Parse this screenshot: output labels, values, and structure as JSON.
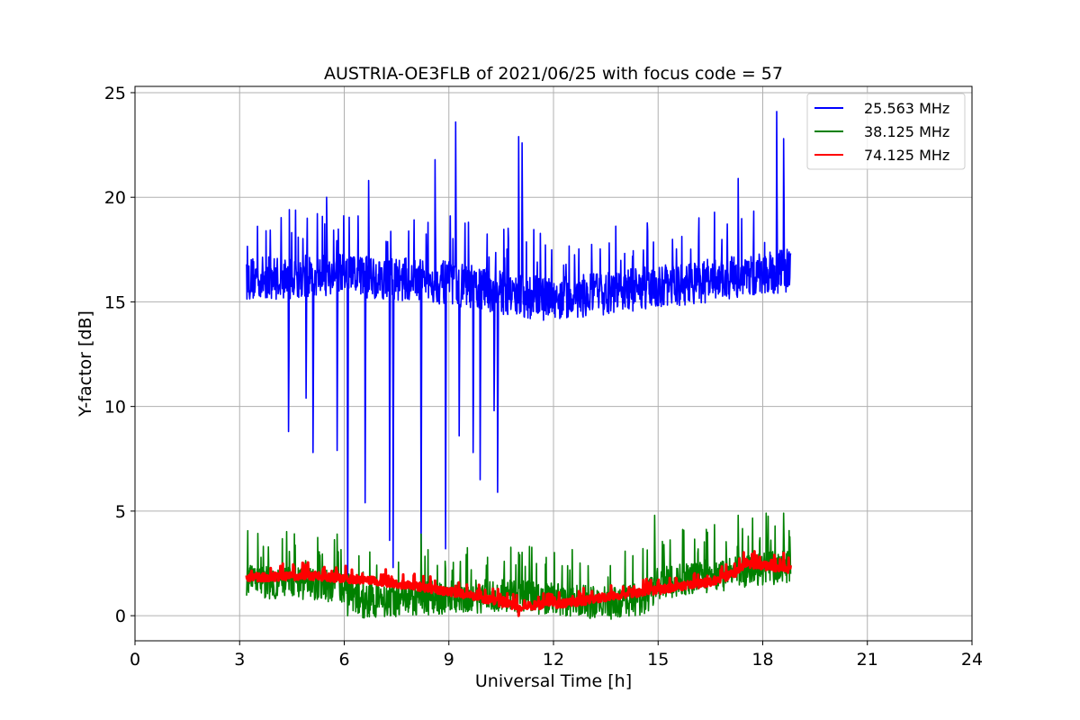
{
  "chart_data": {
    "type": "line",
    "title": "AUSTRIA-OE3FLB of 2021/06/25 with focus code = 57",
    "xlabel": "Universal Time [h]",
    "ylabel": "Y-factor [dB]",
    "xlim": [
      0,
      24
    ],
    "ylim": [
      -1.2,
      25.3
    ],
    "xticks": [
      0,
      3,
      6,
      9,
      12,
      15,
      18,
      21,
      24
    ],
    "xtick_labels": [
      "0",
      "3",
      "6",
      "9",
      "12",
      "15",
      "18",
      "21",
      "24"
    ],
    "yticks": [
      0,
      5,
      10,
      15,
      20,
      25
    ],
    "ytick_labels": [
      "0",
      "5",
      "10",
      "15",
      "20",
      "25"
    ],
    "grid": true,
    "legend_position": "top-right",
    "series": [
      {
        "name": "25.563 MHz",
        "color": "#0000ff",
        "baseline": [
          [
            3.2,
            16.0
          ],
          [
            6.0,
            16.2
          ],
          [
            9.0,
            15.8
          ],
          [
            11.0,
            15.2
          ],
          [
            12.0,
            15.0
          ],
          [
            15.0,
            15.6
          ],
          [
            18.8,
            16.4
          ]
        ],
        "noise_amplitude": 1.3,
        "peaks": [
          [
            4.9,
            19.8
          ],
          [
            5.5,
            20.0
          ],
          [
            6.7,
            20.8
          ],
          [
            8.6,
            21.8
          ],
          [
            9.2,
            23.6
          ],
          [
            11.0,
            22.9
          ],
          [
            11.1,
            22.6
          ],
          [
            17.3,
            20.9
          ],
          [
            18.4,
            24.1
          ],
          [
            18.6,
            22.8
          ]
        ],
        "dips": [
          [
            4.4,
            8.8
          ],
          [
            4.9,
            10.4
          ],
          [
            5.1,
            7.8
          ],
          [
            5.8,
            7.9
          ],
          [
            6.1,
            0.1
          ],
          [
            6.6,
            5.4
          ],
          [
            7.3,
            3.6
          ],
          [
            7.4,
            2.3
          ],
          [
            8.2,
            2.6
          ],
          [
            8.9,
            3.2
          ],
          [
            9.3,
            8.6
          ],
          [
            9.7,
            7.8
          ],
          [
            9.9,
            6.5
          ],
          [
            10.3,
            9.8
          ],
          [
            10.4,
            5.9
          ]
        ]
      },
      {
        "name": "38.125 MHz",
        "color": "#008000",
        "baseline": [
          [
            3.2,
            1.6
          ],
          [
            6.0,
            1.3
          ],
          [
            6.5,
            0.6
          ],
          [
            9.0,
            0.8
          ],
          [
            11.0,
            0.9
          ],
          [
            12.0,
            0.7
          ],
          [
            13.5,
            0.5
          ],
          [
            14.7,
            0.8
          ],
          [
            15.0,
            1.5
          ],
          [
            18.8,
            2.3
          ]
        ],
        "noise_amplitude": 1.0,
        "peaks": [
          [
            5.8,
            3.9
          ],
          [
            8.2,
            3.9
          ],
          [
            14.9,
            4.8
          ],
          [
            17.3,
            4.8
          ],
          [
            18.1,
            4.9
          ],
          [
            18.6,
            4.9
          ]
        ],
        "dips": [
          [
            6.1,
            0.0
          ],
          [
            13.6,
            0.0
          ]
        ]
      },
      {
        "name": "74.125 MHz",
        "color": "#ff0000",
        "baseline": [
          [
            3.2,
            1.8
          ],
          [
            5.0,
            1.9
          ],
          [
            6.5,
            1.7
          ],
          [
            8.0,
            1.4
          ],
          [
            9.5,
            1.0
          ],
          [
            11.0,
            0.4
          ],
          [
            12.5,
            0.6
          ],
          [
            14.0,
            1.0
          ],
          [
            15.0,
            1.2
          ],
          [
            16.5,
            1.6
          ],
          [
            17.2,
            2.0
          ],
          [
            17.5,
            2.5
          ],
          [
            18.8,
            2.2
          ]
        ],
        "noise_amplitude": 0.25,
        "peaks": [
          [
            18.6,
            3.0
          ]
        ],
        "dips": [
          [
            11.0,
            0.0
          ]
        ]
      }
    ]
  }
}
